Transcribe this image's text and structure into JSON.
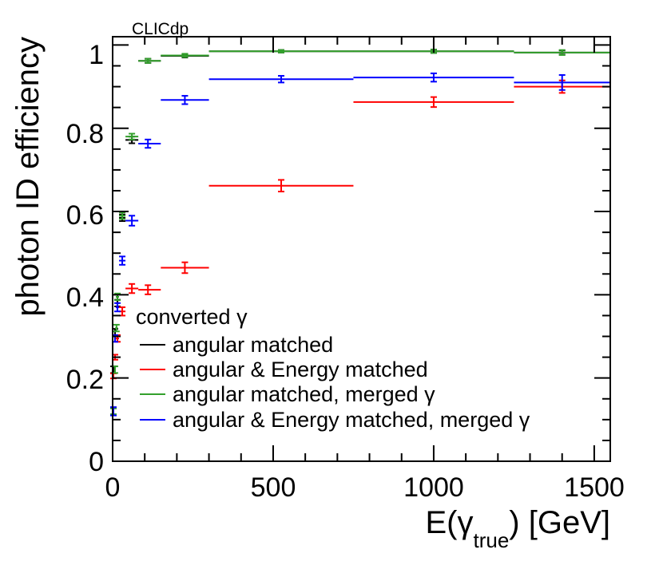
{
  "chart_data": {
    "type": "scatter",
    "tag": "CLICdp",
    "xlabel": {
      "main": "E(",
      "greek": "γ",
      "sub": "true",
      "tail": ") [GeV]"
    },
    "ylabel": "photon ID efficiency",
    "xlim": [
      0,
      1550
    ],
    "ylim": [
      0,
      1.02
    ],
    "xticks": [
      0,
      500,
      1000,
      1500
    ],
    "xtick_labels": [
      "0",
      "500",
      "1000",
      "1500"
    ],
    "yticks": [
      0,
      0.2,
      0.4,
      0.6,
      0.8,
      1
    ],
    "ytick_labels": [
      "0",
      "0.2",
      "0.4",
      "0.6",
      "0.8",
      "1"
    ],
    "legend": {
      "header": "converted γ",
      "entries": [
        "angular matched",
        "angular & Energy matched",
        "angular matched, merged γ",
        "angular & Energy matched, merged γ"
      ]
    },
    "series": [
      {
        "name": "angular matched",
        "color": "#000000",
        "points": [
          {
            "x": 2.5,
            "xlo": 0,
            "xhi": 5,
            "y": 0.22,
            "err": 0.008
          },
          {
            "x": 7.5,
            "xlo": 5,
            "xhi": 10,
            "y": 0.31,
            "err": 0.008
          },
          {
            "x": 15,
            "xlo": 10,
            "xhi": 20,
            "y": 0.38,
            "err": 0.008
          },
          {
            "x": 30,
            "xlo": 20,
            "xhi": 40,
            "y": 0.585,
            "err": 0.008
          },
          {
            "x": 60,
            "xlo": 40,
            "xhi": 80,
            "y": 0.772,
            "err": 0.008
          },
          {
            "x": 110,
            "xlo": 80,
            "xhi": 150,
            "y": 0.962,
            "err": 0.005
          },
          {
            "x": 225,
            "xlo": 150,
            "xhi": 300,
            "y": 0.974,
            "err": 0.004
          },
          {
            "x": 525,
            "xlo": 300,
            "xhi": 750,
            "y": 0.985,
            "err": 0.003
          },
          {
            "x": 1000,
            "xlo": 750,
            "xhi": 1250,
            "y": 0.985,
            "err": 0.004
          },
          {
            "x": 1400,
            "xlo": 1250,
            "xhi": 1550,
            "y": 0.982,
            "err": 0.005
          }
        ]
      },
      {
        "name": "angular & Energy matched",
        "color": "#ff0000",
        "points": [
          {
            "x": 2.5,
            "xlo": 0,
            "xhi": 5,
            "y": 0.205,
            "err": 0.006
          },
          {
            "x": 7.5,
            "xlo": 5,
            "xhi": 10,
            "y": 0.25,
            "err": 0.006
          },
          {
            "x": 15,
            "xlo": 10,
            "xhi": 20,
            "y": 0.295,
            "err": 0.008
          },
          {
            "x": 30,
            "xlo": 20,
            "xhi": 40,
            "y": 0.36,
            "err": 0.01
          },
          {
            "x": 60,
            "xlo": 40,
            "xhi": 80,
            "y": 0.415,
            "err": 0.011
          },
          {
            "x": 110,
            "xlo": 80,
            "xhi": 150,
            "y": 0.412,
            "err": 0.011
          },
          {
            "x": 225,
            "xlo": 150,
            "xhi": 300,
            "y": 0.465,
            "err": 0.013
          },
          {
            "x": 525,
            "xlo": 300,
            "xhi": 750,
            "y": 0.662,
            "err": 0.014
          },
          {
            "x": 1000,
            "xlo": 750,
            "xhi": 1250,
            "y": 0.863,
            "err": 0.012
          },
          {
            "x": 1400,
            "xlo": 1250,
            "xhi": 1550,
            "y": 0.9,
            "err": 0.015
          }
        ]
      },
      {
        "name": "angular matched, merged γ",
        "color": "#33a02c",
        "points": [
          {
            "x": 2.5,
            "xlo": 0,
            "xhi": 5,
            "y": 0.12,
            "err": 0.007
          },
          {
            "x": 7.5,
            "xlo": 5,
            "xhi": 10,
            "y": 0.22,
            "err": 0.008
          },
          {
            "x": 12,
            "xlo": 8,
            "xhi": 16,
            "y": 0.32,
            "err": 0.008
          },
          {
            "x": 15,
            "xlo": 10,
            "xhi": 20,
            "y": 0.395,
            "err": 0.008
          },
          {
            "x": 30,
            "xlo": 20,
            "xhi": 40,
            "y": 0.59,
            "err": 0.008
          },
          {
            "x": 60,
            "xlo": 40,
            "xhi": 80,
            "y": 0.78,
            "err": 0.007
          },
          {
            "x": 110,
            "xlo": 80,
            "xhi": 150,
            "y": 0.962,
            "err": 0.005
          },
          {
            "x": 225,
            "xlo": 150,
            "xhi": 300,
            "y": 0.975,
            "err": 0.004
          },
          {
            "x": 525,
            "xlo": 300,
            "xhi": 750,
            "y": 0.985,
            "err": 0.003
          },
          {
            "x": 1000,
            "xlo": 750,
            "xhi": 1250,
            "y": 0.985,
            "err": 0.004
          },
          {
            "x": 1400,
            "xlo": 1250,
            "xhi": 1550,
            "y": 0.982,
            "err": 0.006
          }
        ]
      },
      {
        "name": "angular & Energy matched, merged γ",
        "color": "#0000ff",
        "points": [
          {
            "x": 2.5,
            "xlo": 0,
            "xhi": 5,
            "y": 0.12,
            "err": 0.01
          },
          {
            "x": 7.5,
            "xlo": 5,
            "xhi": 10,
            "y": 0.295,
            "err": 0.008
          },
          {
            "x": 15,
            "xlo": 10,
            "xhi": 20,
            "y": 0.37,
            "err": 0.01
          },
          {
            "x": 30,
            "xlo": 20,
            "xhi": 40,
            "y": 0.482,
            "err": 0.01
          },
          {
            "x": 60,
            "xlo": 40,
            "xhi": 80,
            "y": 0.578,
            "err": 0.012
          },
          {
            "x": 110,
            "xlo": 80,
            "xhi": 150,
            "y": 0.763,
            "err": 0.01
          },
          {
            "x": 225,
            "xlo": 150,
            "xhi": 300,
            "y": 0.868,
            "err": 0.01
          },
          {
            "x": 525,
            "xlo": 300,
            "xhi": 750,
            "y": 0.918,
            "err": 0.008
          },
          {
            "x": 1000,
            "xlo": 750,
            "xhi": 1250,
            "y": 0.922,
            "err": 0.01
          },
          {
            "x": 1400,
            "xlo": 1250,
            "xhi": 1550,
            "y": 0.91,
            "err": 0.018
          }
        ]
      }
    ]
  }
}
